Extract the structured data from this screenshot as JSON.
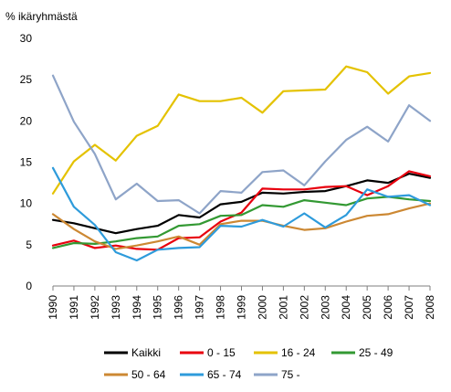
{
  "chart_data": {
    "type": "line",
    "ylabel": "% ikäryhmästä",
    "xlabel": "",
    "title": "",
    "ylim": [
      0,
      30
    ],
    "yticks": [
      0,
      5,
      10,
      15,
      20,
      25,
      30
    ],
    "grid": false,
    "legend_position": "bottom",
    "x": [
      "1990",
      "1991",
      "1992",
      "1993",
      "1994",
      "1995",
      "1996",
      "1997",
      "1998",
      "1999",
      "2000",
      "2001",
      "2002",
      "2003",
      "2004",
      "2005",
      "2006",
      "2007",
      "2008"
    ],
    "series": [
      {
        "name": "Kaikki",
        "color": "#000000",
        "values": [
          8.0,
          7.6,
          7.0,
          6.4,
          6.9,
          7.3,
          8.6,
          8.3,
          9.9,
          10.2,
          11.3,
          11.2,
          11.4,
          11.5,
          12.1,
          12.8,
          12.5,
          13.6,
          13.1
        ]
      },
      {
        "name": "0 - 15",
        "color": "#e8000e",
        "values": [
          4.9,
          5.5,
          4.6,
          4.9,
          4.5,
          4.4,
          5.8,
          5.9,
          7.8,
          8.9,
          11.8,
          11.7,
          11.7,
          12.0,
          12.1,
          11.0,
          12.1,
          13.9,
          13.3
        ]
      },
      {
        "name": "16 - 24",
        "color": "#e4c200",
        "values": [
          11.2,
          15.1,
          17.1,
          15.2,
          18.2,
          19.4,
          23.2,
          22.4,
          22.4,
          22.8,
          21.0,
          23.6,
          23.7,
          23.8,
          26.6,
          25.9,
          23.3,
          25.4,
          25.8
        ]
      },
      {
        "name": "25 - 49",
        "color": "#339933",
        "values": [
          4.6,
          5.2,
          5.1,
          5.4,
          5.8,
          6.0,
          7.3,
          7.5,
          8.5,
          8.6,
          9.8,
          9.6,
          10.4,
          10.1,
          9.8,
          10.6,
          10.8,
          10.5,
          10.3
        ]
      },
      {
        "name": "50 - 64",
        "color": "#cc8833",
        "values": [
          8.7,
          6.9,
          5.4,
          4.5,
          4.9,
          5.4,
          6.0,
          5.0,
          7.5,
          7.9,
          7.9,
          7.3,
          6.8,
          7.0,
          7.8,
          8.5,
          8.7,
          9.4,
          10.0
        ]
      },
      {
        "name": "65 - 74",
        "color": "#2e9bdb",
        "values": [
          14.3,
          9.6,
          7.4,
          4.1,
          3.1,
          4.4,
          4.6,
          4.7,
          7.3,
          7.2,
          8.0,
          7.2,
          8.8,
          7.1,
          8.6,
          11.7,
          10.8,
          11.0,
          9.8
        ]
      },
      {
        "name": "75 -",
        "color": "#8ea4c8",
        "values": [
          25.5,
          19.9,
          16.0,
          10.5,
          12.4,
          10.3,
          10.4,
          8.8,
          11.5,
          11.3,
          13.8,
          14.0,
          12.2,
          15.1,
          17.7,
          19.3,
          17.5,
          21.9,
          20.0
        ]
      }
    ]
  }
}
